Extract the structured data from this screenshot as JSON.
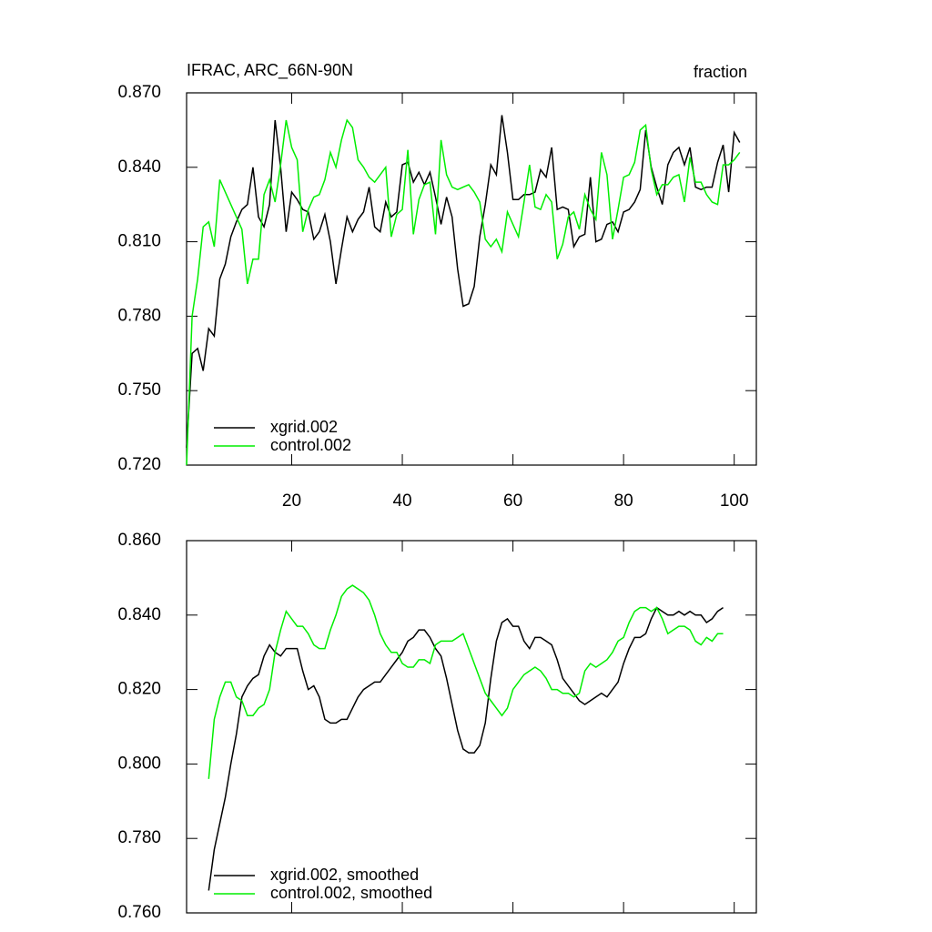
{
  "chart_data": [
    {
      "type": "line",
      "title": "IFRAC, ARC_66N-90N",
      "units": "fraction",
      "x": [
        1,
        2,
        3,
        4,
        5,
        6,
        7,
        8,
        9,
        10,
        11,
        12,
        13,
        14,
        15,
        16,
        17,
        18,
        19,
        20,
        21,
        22,
        23,
        24,
        25,
        26,
        27,
        28,
        29,
        30,
        31,
        32,
        33,
        34,
        35,
        36,
        37,
        38,
        39,
        40,
        41,
        42,
        43,
        44,
        45,
        46,
        47,
        48,
        49,
        50,
        51,
        52,
        53,
        54,
        55,
        56,
        57,
        58,
        59,
        60,
        61,
        62,
        63,
        64,
        65,
        66,
        67,
        68,
        69,
        70,
        71,
        72,
        73,
        74,
        75,
        76,
        77,
        78,
        79,
        80,
        81,
        82,
        83,
        84,
        85,
        86,
        87,
        88,
        89,
        90,
        91,
        92,
        93,
        94,
        95,
        96,
        97,
        98,
        99,
        100,
        101
      ],
      "series": [
        {
          "name": "xgrid.002",
          "color": "#000000",
          "values": [
            0.727,
            0.765,
            0.767,
            0.758,
            0.775,
            0.772,
            0.795,
            0.801,
            0.812,
            0.818,
            0.823,
            0.825,
            0.84,
            0.82,
            0.816,
            0.825,
            0.859,
            0.84,
            0.814,
            0.83,
            0.827,
            0.823,
            0.822,
            0.811,
            0.814,
            0.821,
            0.81,
            0.793,
            0.807,
            0.82,
            0.814,
            0.819,
            0.822,
            0.832,
            0.816,
            0.814,
            0.826,
            0.82,
            0.822,
            0.841,
            0.842,
            0.834,
            0.838,
            0.833,
            0.838,
            0.828,
            0.817,
            0.828,
            0.82,
            0.799,
            0.784,
            0.785,
            0.792,
            0.812,
            0.825,
            0.841,
            0.837,
            0.861,
            0.846,
            0.827,
            0.827,
            0.829,
            0.829,
            0.83,
            0.839,
            0.836,
            0.848,
            0.823,
            0.824,
            0.823,
            0.808,
            0.812,
            0.813,
            0.836,
            0.81,
            0.811,
            0.817,
            0.818,
            0.814,
            0.822,
            0.823,
            0.826,
            0.831,
            0.855,
            0.84,
            0.832,
            0.825,
            0.841,
            0.846,
            0.848,
            0.841,
            0.848,
            0.832,
            0.831,
            0.832,
            0.832,
            0.842,
            0.849,
            0.83,
            0.854,
            0.85
          ]
        },
        {
          "name": "control.002",
          "color": "#00ee00",
          "values": [
            0.72,
            0.78,
            0.795,
            0.816,
            0.818,
            0.808,
            0.835,
            0.83,
            0.825,
            0.82,
            0.815,
            0.793,
            0.803,
            0.803,
            0.829,
            0.835,
            0.826,
            0.841,
            0.859,
            0.848,
            0.843,
            0.814,
            0.823,
            0.828,
            0.829,
            0.835,
            0.846,
            0.84,
            0.851,
            0.859,
            0.856,
            0.843,
            0.84,
            0.836,
            0.834,
            0.837,
            0.84,
            0.812,
            0.821,
            0.823,
            0.847,
            0.813,
            0.827,
            0.833,
            0.834,
            0.813,
            0.851,
            0.837,
            0.832,
            0.831,
            0.832,
            0.833,
            0.83,
            0.826,
            0.811,
            0.808,
            0.811,
            0.806,
            0.822,
            0.817,
            0.812,
            0.826,
            0.841,
            0.824,
            0.823,
            0.829,
            0.826,
            0.803,
            0.809,
            0.82,
            0.822,
            0.815,
            0.829,
            0.823,
            0.819,
            0.846,
            0.837,
            0.811,
            0.823,
            0.836,
            0.837,
            0.842,
            0.855,
            0.857,
            0.839,
            0.829,
            0.833,
            0.833,
            0.836,
            0.837,
            0.826,
            0.844,
            0.834,
            0.834,
            0.829,
            0.826,
            0.825,
            0.841,
            0.841,
            0.843,
            0.846
          ]
        }
      ],
      "xlim": [
        1,
        104
      ],
      "xticks": [
        20,
        40,
        60,
        80,
        100
      ],
      "ylim": [
        0.72,
        0.87
      ],
      "yticks": [
        {
          "value": 0.72,
          "label": "0.720"
        },
        {
          "value": 0.75,
          "label": "0.750"
        },
        {
          "value": 0.78,
          "label": "0.780"
        },
        {
          "value": 0.81,
          "label": "0.810"
        },
        {
          "value": 0.84,
          "label": "0.840"
        },
        {
          "value": 0.87,
          "label": "0.870"
        }
      ],
      "legend": "lower left"
    },
    {
      "type": "line",
      "x": [
        5,
        6,
        7,
        8,
        9,
        10,
        11,
        12,
        13,
        14,
        15,
        16,
        17,
        18,
        19,
        20,
        21,
        22,
        23,
        24,
        25,
        26,
        27,
        28,
        29,
        30,
        31,
        32,
        33,
        34,
        35,
        36,
        37,
        38,
        39,
        40,
        41,
        42,
        43,
        44,
        45,
        46,
        47,
        48,
        49,
        50,
        51,
        52,
        53,
        54,
        55,
        56,
        57,
        58,
        59,
        60,
        61,
        62,
        63,
        64,
        65,
        66,
        67,
        68,
        69,
        70,
        71,
        72,
        73,
        74,
        75,
        76,
        77,
        78,
        79,
        80,
        81,
        82,
        83,
        84,
        85,
        86,
        87,
        88,
        89,
        90,
        91,
        92,
        93,
        94,
        95,
        96,
        97,
        98
      ],
      "series": [
        {
          "name": "xgrid.002, smoothed",
          "color": "#000000",
          "values": [
            0.766,
            0.777,
            0.784,
            0.791,
            0.8,
            0.808,
            0.818,
            0.821,
            0.823,
            0.824,
            0.829,
            0.832,
            0.83,
            0.829,
            0.831,
            0.831,
            0.831,
            0.825,
            0.82,
            0.821,
            0.818,
            0.812,
            0.811,
            0.811,
            0.812,
            0.812,
            0.815,
            0.818,
            0.82,
            0.821,
            0.822,
            0.822,
            0.824,
            0.826,
            0.828,
            0.83,
            0.833,
            0.834,
            0.836,
            0.836,
            0.834,
            0.831,
            0.829,
            0.823,
            0.816,
            0.809,
            0.804,
            0.803,
            0.803,
            0.805,
            0.811,
            0.823,
            0.833,
            0.838,
            0.839,
            0.837,
            0.837,
            0.833,
            0.831,
            0.834,
            0.834,
            0.833,
            0.832,
            0.828,
            0.823,
            0.821,
            0.819,
            0.817,
            0.816,
            0.817,
            0.818,
            0.819,
            0.818,
            0.82,
            0.822,
            0.827,
            0.831,
            0.834,
            0.834,
            0.835,
            0.839,
            0.842,
            0.841,
            0.84,
            0.84,
            0.841,
            0.84,
            0.841,
            0.84,
            0.84,
            0.838,
            0.839,
            0.841,
            0.842
          ]
        },
        {
          "name": "control.002, smoothed",
          "color": "#00ee00",
          "values": [
            0.796,
            0.812,
            0.818,
            0.822,
            0.822,
            0.818,
            0.817,
            0.813,
            0.813,
            0.815,
            0.816,
            0.82,
            0.83,
            0.836,
            0.841,
            0.839,
            0.837,
            0.837,
            0.835,
            0.832,
            0.831,
            0.831,
            0.836,
            0.84,
            0.845,
            0.847,
            0.848,
            0.847,
            0.846,
            0.844,
            0.84,
            0.835,
            0.832,
            0.83,
            0.83,
            0.827,
            0.826,
            0.826,
            0.828,
            0.828,
            0.827,
            0.832,
            0.833,
            0.833,
            0.833,
            0.834,
            0.835,
            0.831,
            0.827,
            0.823,
            0.819,
            0.817,
            0.815,
            0.813,
            0.815,
            0.82,
            0.822,
            0.824,
            0.825,
            0.826,
            0.825,
            0.823,
            0.82,
            0.82,
            0.819,
            0.819,
            0.818,
            0.819,
            0.825,
            0.827,
            0.826,
            0.827,
            0.828,
            0.83,
            0.833,
            0.834,
            0.838,
            0.841,
            0.842,
            0.842,
            0.841,
            0.842,
            0.839,
            0.835,
            0.836,
            0.837,
            0.837,
            0.836,
            0.833,
            0.832,
            0.834,
            0.833,
            0.835,
            0.835
          ]
        }
      ],
      "xlim": [
        1,
        104
      ],
      "xticks": [
        20,
        40,
        60,
        80,
        100
      ],
      "ylim": [
        0.76,
        0.86
      ],
      "yticks": [
        {
          "value": 0.76,
          "label": "0.760"
        },
        {
          "value": 0.78,
          "label": "0.780"
        },
        {
          "value": 0.8,
          "label": "0.800"
        },
        {
          "value": 0.82,
          "label": "0.820"
        },
        {
          "value": 0.84,
          "label": "0.840"
        },
        {
          "value": 0.86,
          "label": "0.860"
        }
      ],
      "legend": "lower left"
    }
  ]
}
